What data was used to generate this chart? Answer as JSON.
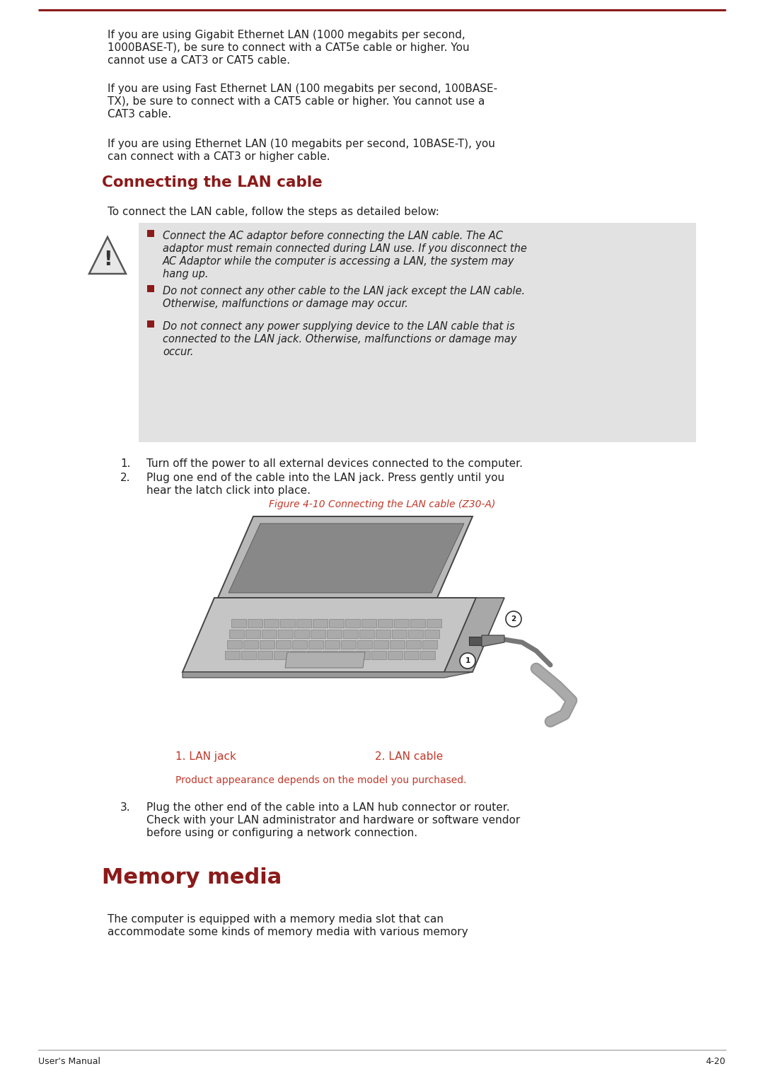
{
  "page_bg": "#ffffff",
  "text_color": "#222222",
  "red_color": "#8b1a1a",
  "crimson_color": "#c0392b",
  "section_heading_color": "#8b1a1a",
  "top_line_color": "#8b1a1a",
  "footer_line_color": "#999999",
  "warning_bg": "#e2e2e2",
  "para1_l1": "If you are using Gigabit Ethernet LAN (1000 megabits per second,",
  "para1_l2": "1000BASE-T), be sure to connect with a CAT5e cable or higher. You",
  "para1_l3": "cannot use a CAT3 or CAT5 cable.",
  "para2_l1": "If you are using Fast Ethernet LAN (100 megabits per second, 100BASE-",
  "para2_l2": "TX), be sure to connect with a CAT5 cable or higher. You cannot use a",
  "para2_l3": "CAT3 cable.",
  "para3_l1": "If you are using Ethernet LAN (10 megabits per second, 10BASE-T), you",
  "para3_l2": "can connect with a CAT3 or higher cable.",
  "section1_title": "Connecting the LAN cable",
  "section1_intro": "To connect the LAN cable, follow the steps as detailed below:",
  "warn1_l1": "Connect the AC adaptor before connecting the LAN cable. The AC",
  "warn1_l2": "adaptor must remain connected during LAN use. If you disconnect the",
  "warn1_l3": "AC Adaptor while the computer is accessing a LAN, the system may",
  "warn1_l4": "hang up.",
  "warn2_l1": "Do not connect any other cable to the LAN jack except the LAN cable.",
  "warn2_l2": "Otherwise, malfunctions or damage may occur.",
  "warn3_l1": "Do not connect any power supplying device to the LAN cable that is",
  "warn3_l2": "connected to the LAN jack. Otherwise, malfunctions or damage may",
  "warn3_l3": "occur.",
  "step1": "Turn off the power to all external devices connected to the computer.",
  "step2_l1": "Plug one end of the cable into the LAN jack. Press gently until you",
  "step2_l2": "hear the latch click into place.",
  "figure_caption": "Figure 4-10 Connecting the LAN cable (Z30-A)",
  "label1": "1. LAN jack",
  "label2": "2. LAN cable",
  "product_note": "Product appearance depends on the model you purchased.",
  "step3_l1": "Plug the other end of the cable into a LAN hub connector or router.",
  "step3_l2": "Check with your LAN administrator and hardware or software vendor",
  "step3_l3": "before using or configuring a network connection.",
  "section2_title": "Memory media",
  "section2_l1": "The computer is equipped with a memory media slot that can",
  "section2_l2": "accommodate some kinds of memory media with various memory",
  "footer_left": "User's Manual",
  "footer_right": "4-20"
}
